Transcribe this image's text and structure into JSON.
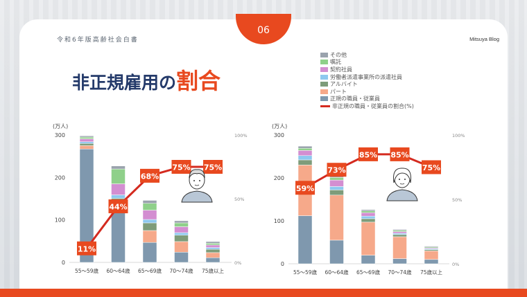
{
  "header": {
    "doc_title": "令和6年版高齢社会白書",
    "page_number": "06",
    "blog": "Mitsuya Blog",
    "headline_main": "非正規雇用の",
    "headline_accent": "割合"
  },
  "legend": [
    {
      "label": "その他",
      "color": "#9aa3ad",
      "kind": "box"
    },
    {
      "label": "嘱託",
      "color": "#8fd08a",
      "kind": "box"
    },
    {
      "label": "契約社員",
      "color": "#d38ed1",
      "kind": "box"
    },
    {
      "label": "労働者派遣事業所の派遣社員",
      "color": "#8ec8ef",
      "kind": "box"
    },
    {
      "label": "アルバイト",
      "color": "#7e9c7a",
      "kind": "box"
    },
    {
      "label": "パート",
      "color": "#f6a98a",
      "kind": "box"
    },
    {
      "label": "正規の職員・従業員",
      "color": "#7f98ae",
      "kind": "box"
    },
    {
      "label": "非正規の職員・従業員の割合(%)",
      "color": "#d42a1f",
      "kind": "line"
    }
  ],
  "chart_data": [
    {
      "type": "bar",
      "stacked": true,
      "ylabel": "(万人)",
      "ylim": [
        0,
        300
      ],
      "yticks": [
        "0",
        "100",
        "200",
        "300"
      ],
      "y2lim": [
        0,
        100
      ],
      "y2ticks": [
        "0%",
        "50%",
        "100%"
      ],
      "categories": [
        "55～59歳",
        "60～64歳",
        "65～69歳",
        "70～74歳",
        "75歳以上"
      ],
      "series": [
        {
          "name": "正規の職員・従業員",
          "color": "#7f98ae",
          "values": [
            267,
            133,
            47,
            24,
            11
          ]
        },
        {
          "name": "パート",
          "color": "#f6a98a",
          "values": [
            8,
            10,
            28,
            25,
            12
          ]
        },
        {
          "name": "アルバイト",
          "color": "#7e9c7a",
          "values": [
            5,
            8,
            18,
            15,
            8
          ]
        },
        {
          "name": "労働者派遣事業所の派遣社員",
          "color": "#8ec8ef",
          "values": [
            4,
            8,
            8,
            6,
            4
          ]
        },
        {
          "name": "契約社員",
          "color": "#d38ed1",
          "values": [
            7,
            26,
            22,
            14,
            6
          ]
        },
        {
          "name": "嘱託",
          "color": "#8fd08a",
          "values": [
            4,
            35,
            16,
            9,
            4
          ]
        },
        {
          "name": "その他",
          "color": "#9aa3ad",
          "values": [
            3,
            7,
            7,
            5,
            4
          ]
        }
      ],
      "line": {
        "name": "非正規の職員・従業員の割合(%)",
        "color": "#d42a1f",
        "values": [
          11,
          44,
          68,
          75,
          75
        ],
        "labels": [
          "11%",
          "44%",
          "68%",
          "75%",
          "75%"
        ]
      },
      "person": "man"
    },
    {
      "type": "bar",
      "stacked": true,
      "ylabel": "(万人)",
      "ylim": [
        0,
        300
      ],
      "yticks": [
        "0",
        "100",
        "200",
        "300"
      ],
      "y2lim": [
        0,
        100
      ],
      "y2ticks": [
        "0%",
        "50%",
        "100%"
      ],
      "categories": [
        "55～59歳",
        "60～64歳",
        "65～69歳",
        "70～74歳",
        "75歳以上"
      ],
      "series": [
        {
          "name": "正規の職員・従業員",
          "color": "#7f98ae",
          "values": [
            112,
            55,
            20,
            12,
            10
          ]
        },
        {
          "name": "パート",
          "color": "#f6a98a",
          "values": [
            118,
            105,
            77,
            51,
            20
          ]
        },
        {
          "name": "アルバイト",
          "color": "#7e9c7a",
          "values": [
            12,
            12,
            8,
            5,
            3
          ]
        },
        {
          "name": "労働者派遣事業所の派遣社員",
          "color": "#8ec8ef",
          "values": [
            10,
            8,
            6,
            3,
            2
          ]
        },
        {
          "name": "契約社員",
          "color": "#d38ed1",
          "values": [
            12,
            15,
            8,
            4,
            2
          ]
        },
        {
          "name": "嘱託",
          "color": "#8fd08a",
          "values": [
            5,
            6,
            4,
            3,
            2
          ]
        },
        {
          "name": "その他",
          "color": "#9aa3ad",
          "values": [
            5,
            5,
            3,
            2,
            2
          ]
        }
      ],
      "line": {
        "name": "非正規の職員・従業員の割合(%)",
        "color": "#d42a1f",
        "values": [
          59,
          73,
          85,
          85,
          75
        ],
        "labels": [
          "59%",
          "73%",
          "85%",
          "85%",
          "75%"
        ]
      },
      "person": "woman"
    }
  ]
}
